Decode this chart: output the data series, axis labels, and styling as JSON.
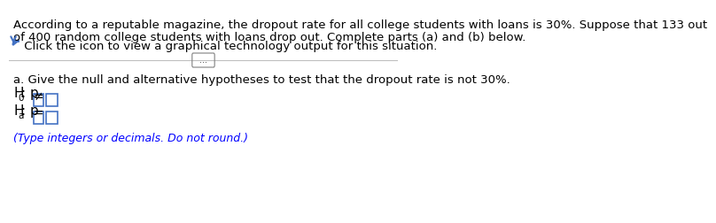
{
  "bg_color": "#ffffff",
  "main_text_line1": "According to a reputable magazine, the dropout rate for all college students with loans is 30%. Suppose that 133 out",
  "main_text_line2": "of 400 random college students with loans drop out. Complete parts (a) and (b) below.",
  "click_text": " Click the icon to view a graphical technology output for this situation.",
  "section_a_text": "a. Give the null and alternative hypotheses to test that the dropout rate is not 30%.",
  "h0_label": "H",
  "h0_sub": "0",
  "h0_colon_p": ": p",
  "h0_symbol": "≠",
  "ha_label": "H",
  "ha_sub": "a",
  "ha_colon_p": ": p",
  "ha_symbol": "=",
  "note_text": "(Type integers or decimals. Do not round.)",
  "note_color": "#0000ff",
  "box_color": "#4472c4",
  "divider_color": "#808080",
  "arrow_color": "#4472c4",
  "text_color": "#000000",
  "font_size_main": 9.5,
  "font_size_hyp": 10.5,
  "font_size_note": 9.0
}
